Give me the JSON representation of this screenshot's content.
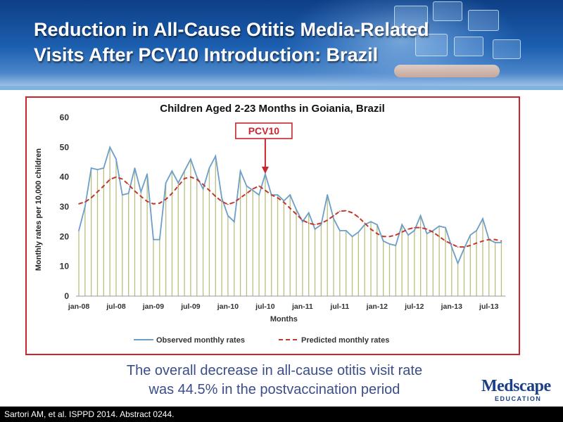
{
  "slide": {
    "title_line1": "Reduction in All-Cause Otitis Media-Related",
    "title_line2": "Visits After PCV10 Introduction: Brazil",
    "summary_line1": "The overall decrease in all-cause otitis visit rate",
    "summary_line2": "was 44.5% in the postvaccination period",
    "citation": "Sartori AM, et al. ISPPD 2014. Abstract 0244.",
    "brand": "Medscape",
    "brand_sub": "EDUCATION"
  },
  "colors": {
    "observed": "#6b9ec9",
    "predicted": "#c0392b",
    "bars": "#b9bf7e",
    "frame": "#c8252d"
  },
  "chart_data": {
    "type": "line",
    "title": "Children Aged 2-23 Months in Goiania, Brazil",
    "xlabel": "Months",
    "ylabel": "Monthly rates per 10,000 children",
    "ylim": [
      0,
      60
    ],
    "yticks": [
      0,
      10,
      20,
      30,
      40,
      50,
      60
    ],
    "xticks": [
      {
        "label": "jan-08",
        "index": 0
      },
      {
        "label": "jul-08",
        "index": 6
      },
      {
        "label": "jan-09",
        "index": 12
      },
      {
        "label": "jul-09",
        "index": 18
      },
      {
        "label": "jan-10",
        "index": 24
      },
      {
        "label": "jul-10",
        "index": 30
      },
      {
        "label": "jan-11",
        "index": 36
      },
      {
        "label": "jul-11",
        "index": 42
      },
      {
        "label": "jan-12",
        "index": 48
      },
      {
        "label": "jul-12",
        "index": 54
      },
      {
        "label": "jan-13",
        "index": 60
      },
      {
        "label": "jul-13",
        "index": 66
      }
    ],
    "annotation": {
      "label": "PCV10",
      "index": 30
    },
    "legend_position": "bottom",
    "series": [
      {
        "name": "Observed monthly rates",
        "style": "solid",
        "values": [
          22,
          30,
          43,
          42.5,
          43,
          50,
          46,
          34,
          34.5,
          43,
          35,
          41,
          19,
          19,
          38,
          42,
          38,
          42,
          46,
          40,
          36,
          43,
          47,
          33,
          27,
          25,
          42,
          37,
          35.5,
          34,
          41,
          34,
          34,
          32,
          34,
          29,
          25,
          28,
          22.5,
          24,
          34,
          26,
          22,
          22,
          20,
          21.5,
          24,
          25,
          24,
          18.5,
          17.5,
          17,
          24,
          20.5,
          22,
          27,
          21,
          22,
          23.5,
          23,
          16.5,
          11,
          16,
          20.5,
          22,
          26,
          19,
          18,
          18
        ]
      },
      {
        "name": "Predicted monthly rates",
        "style": "dashed",
        "values": [
          31,
          31.6,
          33,
          35,
          37,
          39.2,
          40,
          39.3,
          37.5,
          35.3,
          33.5,
          31.8,
          31,
          31.2,
          32.5,
          34.5,
          37,
          39.5,
          40,
          39.2,
          37.5,
          35.5,
          33.5,
          31.8,
          30.8,
          31.5,
          33,
          34.5,
          36,
          37,
          35.5,
          34,
          33,
          31.5,
          29.5,
          27.5,
          25.5,
          24.5,
          24,
          24.5,
          25.5,
          27,
          28.5,
          28.7,
          28,
          26.5,
          24.5,
          22.5,
          21,
          20,
          20,
          20.5,
          21.5,
          22.5,
          23,
          23,
          22.5,
          21.5,
          20,
          18.5,
          17.5,
          16.5,
          16.5,
          17,
          17.8,
          18.5,
          19,
          19,
          18.5
        ]
      }
    ]
  }
}
